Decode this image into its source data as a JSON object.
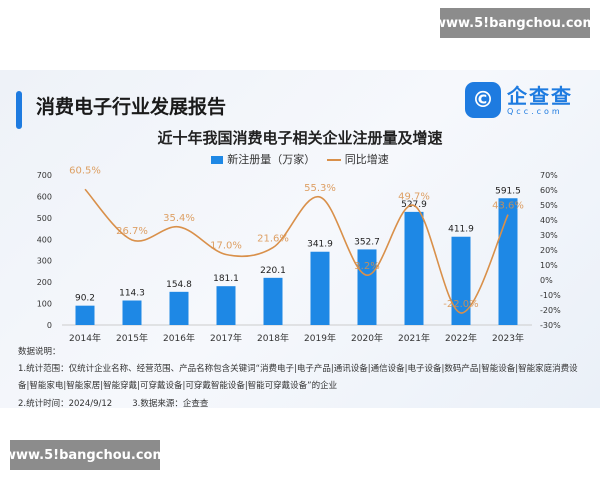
{
  "watermark": "www.5!bangchou.com",
  "header": {
    "title": "消费电子行业发展报告",
    "logo_cn": "企查查",
    "logo_en": "Qcc.com"
  },
  "chart_data": {
    "type": "bar+line",
    "title": "近十年我国消费电子相关企业注册量及增速",
    "categories": [
      "2014年",
      "2015年",
      "2016年",
      "2017年",
      "2018年",
      "2019年",
      "2020年",
      "2021年",
      "2022年",
      "2023年"
    ],
    "series": [
      {
        "name": "新注册量（万家）",
        "type": "bar",
        "axis": "left",
        "color": "#1e88e5",
        "values": [
          90.2,
          114.3,
          154.8,
          181.1,
          220.1,
          341.9,
          352.7,
          527.9,
          411.9,
          591.5
        ],
        "labels": [
          "90.2",
          "114.3",
          "154.8",
          "181.1",
          "220.1",
          "341.9",
          "352.7",
          "527.9",
          "411.9",
          "591.5"
        ]
      },
      {
        "name": "同比增速",
        "type": "line",
        "axis": "right",
        "color": "#d9904a",
        "values": [
          60.5,
          26.7,
          35.4,
          17.0,
          21.6,
          55.3,
          3.2,
          49.7,
          -22.0,
          43.6
        ],
        "labels": [
          "60.5%",
          "26.7%",
          "35.4%",
          "17.0%",
          "21.6%",
          "55.3%",
          "3.2%",
          "49.7%",
          "-22.0%",
          "43.6%"
        ]
      }
    ],
    "ylim_left": [
      0,
      700
    ],
    "yticks_left": [
      "0",
      "100",
      "200",
      "300",
      "400",
      "500",
      "600",
      "700"
    ],
    "ylim_right": [
      -30,
      70
    ],
    "yticks_right": [
      "-30%",
      "-20%",
      "-10%",
      "0%",
      "10%",
      "20%",
      "30%",
      "40%",
      "50%",
      "60%",
      "70%"
    ],
    "legend": "top-center",
    "grid": false
  },
  "notes": {
    "heading": "数据说明：",
    "scope": "1.统计范围：仅统计企业名称、经营范围、产品名称包含关键词“消费电子|电子产品|通讯设备|通信设备|电子设备|数码产品|智能设备|智能家庭消费设备|智能家电|智能家居|智能穿戴|可穿戴设备|可穿戴智能设备|智能可穿戴设备”的企业",
    "time": "2.统计时间：2024/9/12",
    "source": "3.数据来源：企查查"
  }
}
